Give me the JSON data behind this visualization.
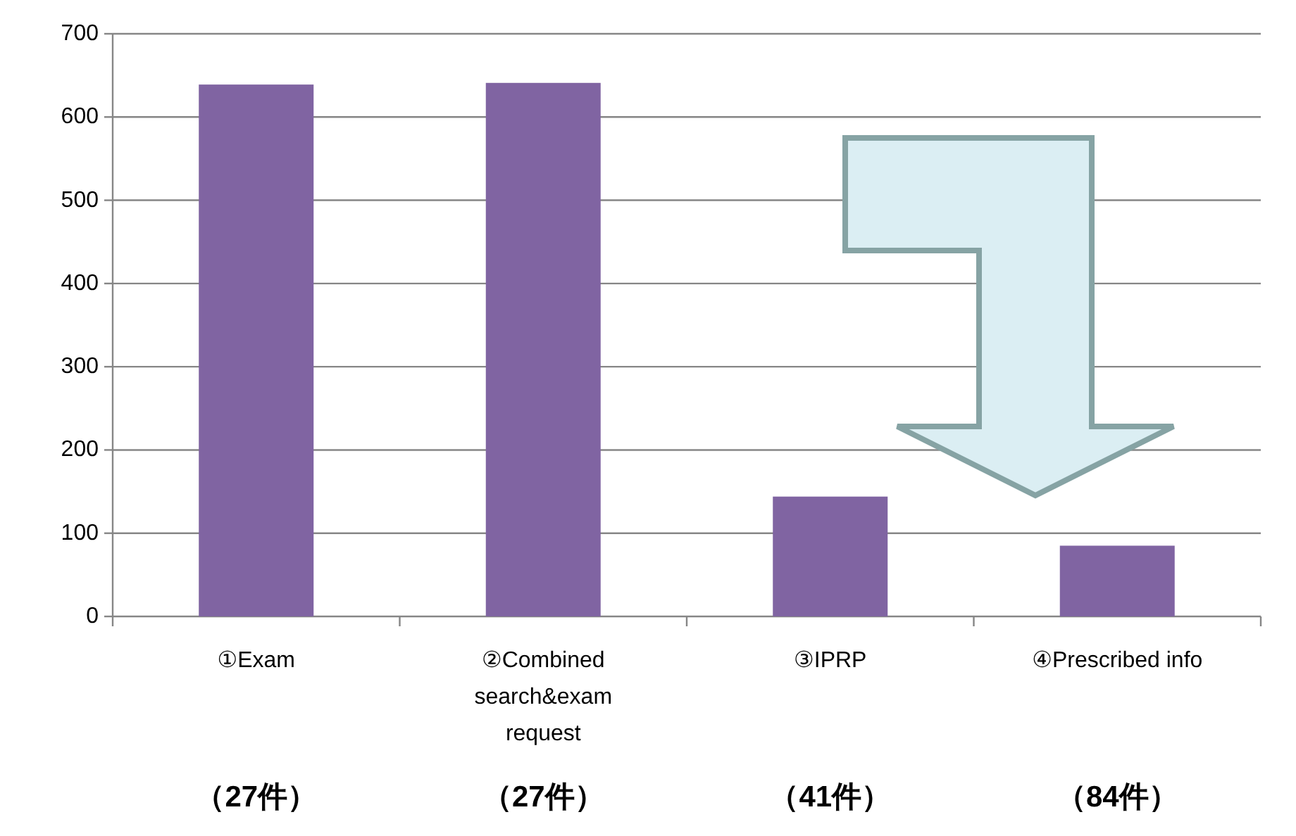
{
  "chart_data": {
    "type": "bar",
    "categories": [
      "①Exam",
      "②Combined search&exam request",
      "③IPRP",
      "④Prescribed info"
    ],
    "values": [
      639,
      641,
      144,
      85
    ],
    "color": "#8064a2",
    "ylim": [
      0,
      700
    ],
    "yticks": [
      0,
      100,
      200,
      300,
      400,
      500,
      600,
      700
    ],
    "grid": "y",
    "annotations": [
      "（27件）",
      "（27件）",
      "（41件）",
      "（84件）"
    ]
  }
}
